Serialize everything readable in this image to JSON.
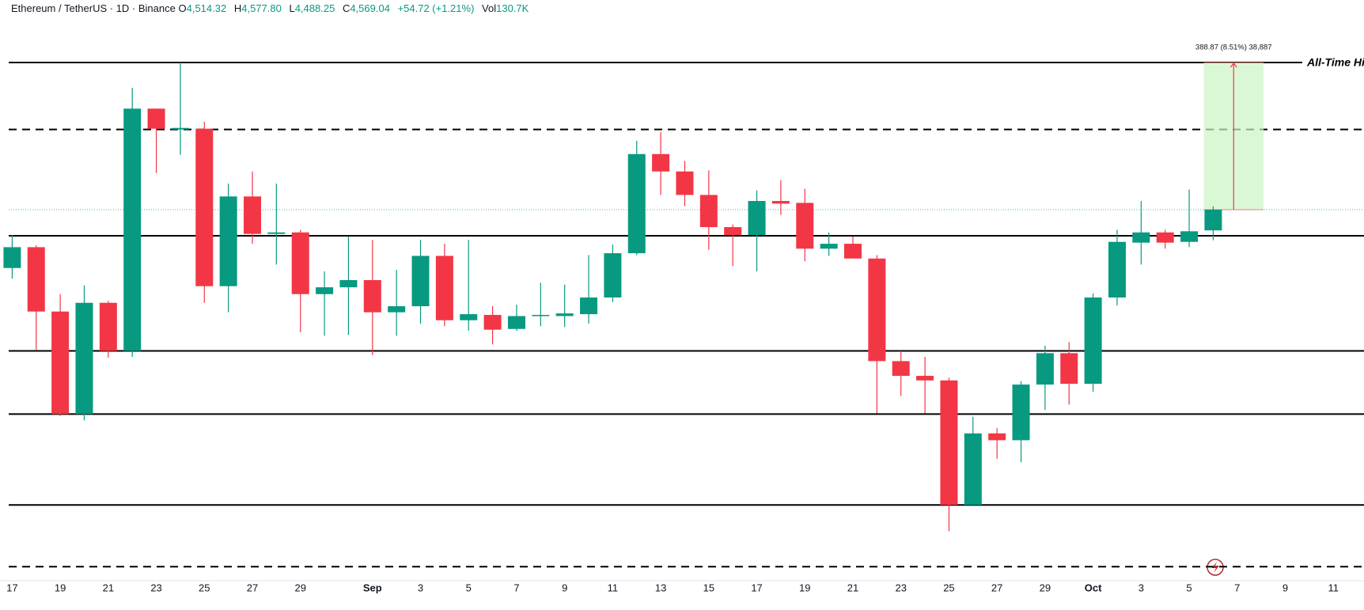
{
  "chart_data": {
    "type": "candlestick",
    "header": {
      "symbol": "Ethereum / TetherUS · 1D · Binance",
      "o_label": "O",
      "o": "4,514.32",
      "h_label": "H",
      "h": "4,577.80",
      "l_label": "L",
      "l": "4,488.25",
      "c_label": "C",
      "c": "4,569.04",
      "change": "+54.72 (+1.21%)",
      "vol_label": "Vol",
      "vol": "130.7K"
    },
    "categories": [
      "17",
      null,
      "19",
      null,
      "21",
      null,
      "23",
      null,
      "25",
      null,
      "27",
      null,
      "29",
      null,
      null,
      "Sep",
      null,
      "3",
      null,
      "5",
      null,
      "7",
      null,
      "9",
      null,
      "11",
      null,
      "13",
      null,
      "15",
      null,
      "17",
      null,
      "19",
      null,
      "21",
      null,
      "23",
      null,
      "25",
      null,
      "27",
      null,
      "29",
      null,
      "Oct",
      null,
      "3",
      null,
      "5",
      null,
      "7",
      null,
      "9",
      null,
      "11"
    ],
    "open": [
      4415,
      4470,
      4300,
      4029,
      4323,
      4196,
      4836,
      4781,
      4783,
      4367,
      4604,
      4505,
      4509,
      4346,
      4364,
      4383,
      4298,
      4314,
      4447,
      4277,
      4291,
      4254,
      4288,
      4288,
      4293,
      4337,
      4454,
      4716,
      4670,
      4608,
      4523,
      4502,
      4592,
      4587,
      4466,
      4479,
      4440,
      4169,
      4130,
      4118,
      3789,
      3978,
      3960,
      4107,
      4190,
      4109,
      4337,
      4482,
      4509,
      4484,
      4514.32,
      null,
      null,
      null,
      null,
      null
    ],
    "high": [
      4502,
      4475,
      4346,
      4369,
      4328,
      4891,
      4836,
      4958,
      4801,
      4638,
      4670,
      4638,
      4516,
      4406,
      4498,
      4489,
      4410,
      4489,
      4479,
      4489,
      4314,
      4318,
      4376,
      4371,
      4449,
      4477,
      4751,
      4774,
      4698,
      4673,
      4530,
      4620,
      4647,
      4624,
      4509,
      4498,
      4449,
      4196,
      4180,
      4125,
      4022,
      3992,
      4116,
      4210,
      4219,
      4348,
      4516,
      4592,
      4516,
      4622,
      4577.8,
      null,
      null,
      null,
      null,
      null
    ],
    "low": [
      4387,
      4199,
      4024,
      4012,
      4178,
      4180,
      4666,
      4714,
      4323,
      4298,
      4479,
      4424,
      4245,
      4236,
      4238,
      4185,
      4236,
      4268,
      4261,
      4249,
      4213,
      4249,
      4261,
      4259,
      4268,
      4325,
      4449,
      4608,
      4578,
      4463,
      4420,
      4406,
      4555,
      4433,
      4447,
      4440,
      4031,
      4077,
      4031,
      3720,
      3789,
      3911,
      3902,
      4040,
      4054,
      4088,
      4316,
      4424,
      4466,
      4470,
      4488.25,
      null,
      null,
      null,
      null,
      null
    ],
    "close": [
      4470,
      4300,
      4029,
      4323,
      4196,
      4836,
      4783,
      4785,
      4367,
      4604,
      4505,
      4509,
      4346,
      4364,
      4383,
      4298,
      4314,
      4447,
      4277,
      4293,
      4252,
      4288,
      4291,
      4295,
      4337,
      4454,
      4716,
      4670,
      4608,
      4523,
      4502,
      4592,
      4585,
      4466,
      4479,
      4440,
      4169,
      4130,
      4118,
      3789,
      3978,
      3960,
      4107,
      4190,
      4109,
      4337,
      4484,
      4509,
      4482,
      4512,
      4569.04,
      null,
      null,
      null,
      null,
      null
    ],
    "up_color": "#089981",
    "down_color": "#f23645",
    "ylim": [
      3594,
      5123
    ],
    "levels": [
      {
        "value": 4958,
        "style": "solid",
        "label": "All-Time High"
      },
      {
        "value": 4781,
        "style": "dashed"
      },
      {
        "value": 4500,
        "style": "solid"
      },
      {
        "value": 4196,
        "style": "solid"
      },
      {
        "value": 4029,
        "style": "solid"
      },
      {
        "value": 3789,
        "style": "solid"
      },
      {
        "value": 3626,
        "style": "dashed"
      }
    ],
    "last_price": 4569.04,
    "measure": {
      "from": 4569.04,
      "to": 4957.91,
      "label": "388.87 (8.51%) 38,887",
      "start_index": 50,
      "end_index": 52,
      "color": "#f23645",
      "fill": "#ccf5c4"
    }
  }
}
